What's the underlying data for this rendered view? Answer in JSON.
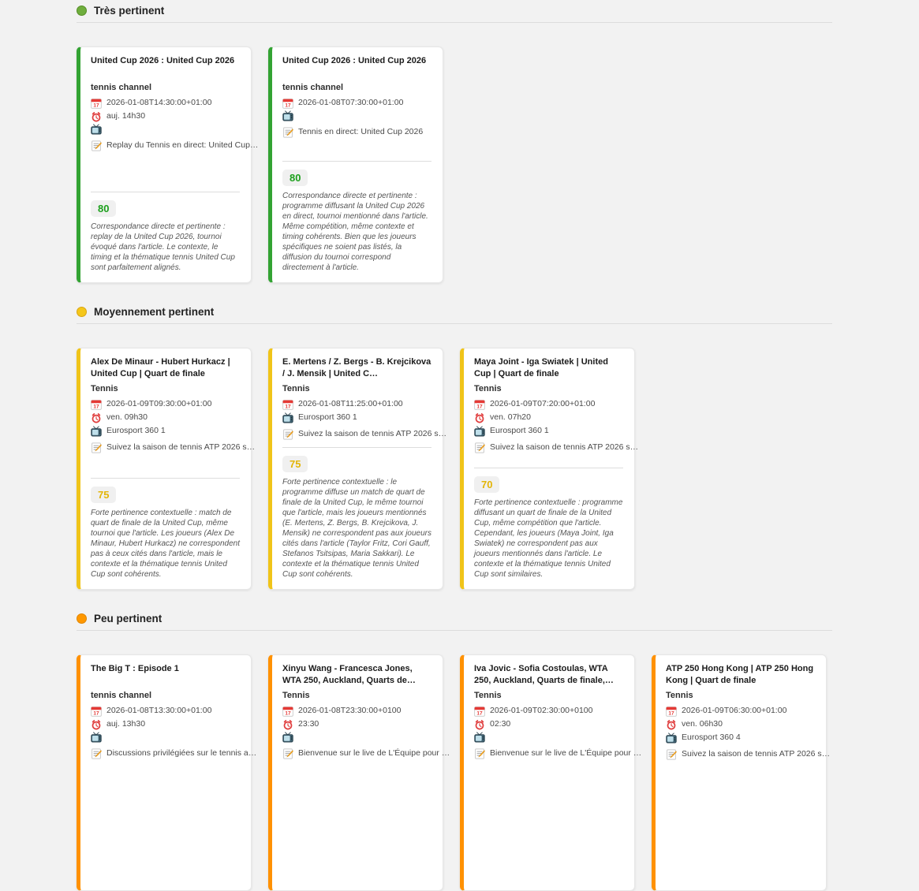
{
  "page": {
    "background": "#f2f2f2"
  },
  "icons": {
    "section_dot": "colored-circle-icon",
    "date": "calendar-icon",
    "time": "alarm-clock-icon",
    "channel": "tv-icon",
    "description": "memo-icon"
  },
  "sections": [
    {
      "id": "tres-pertinent",
      "label": "Très pertinent",
      "dot_color": "#6fae3d",
      "dot_border": "#568e27",
      "accent_color": "#33a333",
      "score_color": "#1ca01c",
      "cards": [
        {
          "title": "United Cup 2026 : United Cup 2026",
          "channel": "tennis channel",
          "date": "2026-01-08T14:30:00+01:00",
          "time": "auj. 14h30",
          "tv": "",
          "description": "Replay du Tennis en direct: United Cup…",
          "score": "80",
          "explanation": "Correspondance directe et pertinente : replay de la United Cup 2026, tournoi évoqué dans l'article. Le contexte, le timing et la thématique tennis United Cup sont parfaitement alignés."
        },
        {
          "title": "United Cup 2026 : United Cup 2026",
          "channel": "tennis channel",
          "date": "2026-01-08T07:30:00+01:00",
          "time": null,
          "tv": "",
          "description": "Tennis en direct: United Cup 2026",
          "score": "80",
          "explanation": "Correspondance directe et pertinente : programme diffusant la United Cup 2026 en direct, tournoi mentionné dans l'article. Même compétition, même contexte et timing cohérents. Bien que les joueurs spécifiques ne soient pas listés, la diffusion du tournoi correspond directement à l'article."
        }
      ]
    },
    {
      "id": "moyennement-pertinent",
      "label": "Moyennement pertinent",
      "dot_color": "#f5c71a",
      "dot_border": "#d9a514",
      "accent_color": "#f0c419",
      "score_color": "#e3b507",
      "cards": [
        {
          "title": "Alex De Minaur - Hubert Hurkacz | United Cup | Quart de finale",
          "channel": "Tennis",
          "date": "2026-01-09T09:30:00+01:00",
          "time": "ven. 09h30",
          "tv": "Eurosport 360 1",
          "description": "Suivez la saison de tennis ATP 2026 s…",
          "score": "75",
          "explanation": "Forte pertinence contextuelle : match de quart de finale de la United Cup, même tournoi que l'article. Les joueurs (Alex De Minaur, Hubert Hurkacz) ne correspondent pas à ceux cités dans l'article, mais le contexte et la thématique tennis United Cup sont cohérents."
        },
        {
          "title": "E. Mertens / Z. Bergs - B. Krejcikova / J. Mensik | United C…",
          "channel": "Tennis",
          "date": "2026-01-08T11:25:00+01:00",
          "time": null,
          "tv": "Eurosport 360 1",
          "description": "Suivez la saison de tennis ATP 2026 s…",
          "score": "75",
          "explanation": "Forte pertinence contextuelle : le programme diffuse un match de quart de finale de la United Cup, le même tournoi que l'article, mais les joueurs mentionnés (E. Mertens, Z. Bergs, B. Krejcikova, J. Mensik) ne correspondent pas aux joueurs cités dans l'article (Taylor Fritz, Cori Gauff, Stefanos Tsitsipas, Maria Sakkari). Le contexte et la thématique tennis United Cup sont cohérents."
        },
        {
          "title": "Maya Joint - Iga Swiatek | United Cup | Quart de finale",
          "channel": "Tennis",
          "date": "2026-01-09T07:20:00+01:00",
          "time": "ven. 07h20",
          "tv": "Eurosport 360 1",
          "description": "Suivez la saison de tennis ATP 2026 s…",
          "score": "70",
          "explanation": "Forte pertinence contextuelle : programme diffusant un quart de finale de la United Cup, même compétition que l'article. Cependant, les joueurs (Maya Joint, Iga Swiatek) ne correspondent pas aux joueurs mentionnés dans l'article. Le contexte et la thématique tennis United Cup sont similaires."
        }
      ]
    },
    {
      "id": "peu-pertinent",
      "label": "Peu pertinent",
      "dot_color": "#ff9800",
      "dot_border": "#e08600",
      "accent_color": "#ff9102",
      "score_color": "#e08600",
      "cards": [
        {
          "title": "The Big T : Episode 1",
          "channel": "tennis channel",
          "date": "2026-01-08T13:30:00+01:00",
          "time": "auj. 13h30",
          "tv": "",
          "description": "Discussions privilégiées sur le tennis a…",
          "score": null,
          "explanation": null
        },
        {
          "title": "Xinyu Wang - Francesca Jones, WTA 250, Auckland, Quarts de…",
          "channel": "Tennis",
          "date": "2026-01-08T23:30:00+0100",
          "time": "23:30",
          "tv": "",
          "description": "Bienvenue sur le live de L'Équipe pour …",
          "score": null,
          "explanation": null
        },
        {
          "title": "Iva Jovic - Sofia Costoulas, WTA 250, Auckland, Quarts de finale,…",
          "channel": "Tennis",
          "date": "2026-01-09T02:30:00+0100",
          "time": "02:30",
          "tv": "",
          "description": "Bienvenue sur le live de L'Équipe pour …",
          "score": null,
          "explanation": null
        },
        {
          "title": "ATP 250 Hong Kong | ATP 250 Hong Kong | Quart de finale",
          "channel": "Tennis",
          "date": "2026-01-09T06:30:00+01:00",
          "time": "ven. 06h30",
          "tv": "Eurosport 360 4",
          "description": "Suivez la saison de tennis ATP 2026 s…",
          "score": null,
          "explanation": null
        }
      ]
    }
  ]
}
